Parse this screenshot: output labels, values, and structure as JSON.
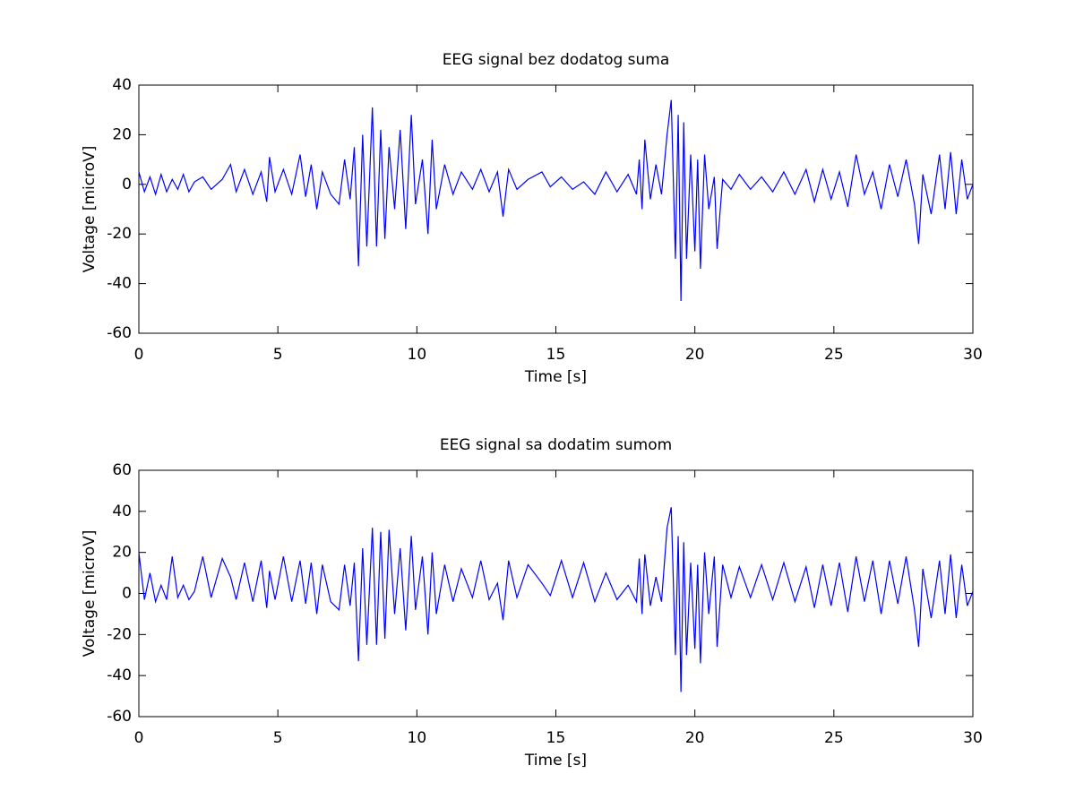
{
  "chart_data": [
    {
      "type": "line",
      "title": "EEG signal bez dodatog suma",
      "xlabel": "Time [s]",
      "ylabel": "Voltage [microV]",
      "xlim": [
        0,
        30
      ],
      "xticks": [
        0,
        5,
        10,
        15,
        20,
        25,
        30
      ],
      "ylim": [
        -60,
        40
      ],
      "yticks": [
        -60,
        -40,
        -20,
        0,
        20,
        40
      ],
      "color": "#0000ff",
      "x": [
        0,
        0.2,
        0.4,
        0.6,
        0.8,
        1.0,
        1.2,
        1.4,
        1.6,
        1.8,
        2.0,
        2.3,
        2.6,
        3.0,
        3.3,
        3.5,
        3.8,
        4.1,
        4.4,
        4.6,
        4.7,
        4.9,
        5.2,
        5.5,
        5.8,
        6.0,
        6.2,
        6.4,
        6.6,
        6.9,
        7.2,
        7.4,
        7.6,
        7.75,
        7.9,
        8.05,
        8.2,
        8.4,
        8.55,
        8.7,
        8.85,
        9.0,
        9.2,
        9.4,
        9.6,
        9.8,
        9.95,
        10.2,
        10.4,
        10.55,
        10.7,
        11.0,
        11.3,
        11.6,
        12.0,
        12.3,
        12.6,
        12.9,
        13.1,
        13.3,
        13.6,
        14.0,
        14.5,
        14.8,
        15.2,
        15.6,
        16.0,
        16.4,
        16.8,
        17.2,
        17.6,
        17.9,
        18.0,
        18.1,
        18.2,
        18.4,
        18.6,
        18.8,
        19.0,
        19.15,
        19.3,
        19.4,
        19.5,
        19.6,
        19.7,
        19.85,
        20.0,
        20.1,
        20.2,
        20.35,
        20.5,
        20.7,
        20.8,
        21.0,
        21.3,
        21.6,
        22.0,
        22.4,
        22.8,
        23.2,
        23.6,
        24.0,
        24.3,
        24.6,
        24.9,
        25.2,
        25.5,
        25.8,
        26.1,
        26.4,
        26.7,
        27.0,
        27.3,
        27.6,
        27.9,
        28.05,
        28.2,
        28.5,
        28.8,
        29.0,
        29.2,
        29.4,
        29.6,
        29.8,
        30.0
      ],
      "values": [
        5,
        -3,
        3,
        -4,
        4,
        -3,
        2,
        -2,
        4,
        -3,
        1,
        3,
        -2,
        2,
        8,
        -3,
        6,
        -4,
        5,
        -7,
        11,
        -3,
        6,
        -4,
        12,
        -5,
        8,
        -10,
        5,
        -4,
        -8,
        10,
        -6,
        15,
        -33,
        20,
        -25,
        31,
        -25,
        22,
        -22,
        15,
        -10,
        22,
        -18,
        28,
        -8,
        10,
        -20,
        18,
        -10,
        8,
        -4,
        5,
        -2,
        6,
        -3,
        5,
        -13,
        6,
        -2,
        2,
        5,
        -1,
        3,
        -2,
        1,
        -4,
        5,
        -3,
        4,
        -4,
        10,
        -10,
        18,
        -6,
        8,
        -4,
        20,
        34,
        -30,
        28,
        -47,
        25,
        -30,
        12,
        -27,
        10,
        -34,
        12,
        -10,
        3,
        -26,
        2,
        -2,
        4,
        -2,
        3,
        -3,
        5,
        -4,
        6,
        -7,
        6,
        -6,
        5,
        -9,
        12,
        -4,
        5,
        -10,
        8,
        -5,
        10,
        -8,
        -24,
        4,
        -12,
        12,
        -10,
        13,
        -12,
        10,
        -6,
        0
      ]
    },
    {
      "type": "line",
      "title": "EEG signal sa dodatim sumom",
      "xlabel": "Time [s]",
      "ylabel": "Voltage [microV]",
      "xlim": [
        0,
        30
      ],
      "xticks": [
        0,
        5,
        10,
        15,
        20,
        25,
        30
      ],
      "ylim": [
        -60,
        60
      ],
      "yticks": [
        -60,
        -40,
        -20,
        0,
        20,
        40,
        60
      ],
      "color": "#0000ff",
      "x": [
        0,
        0.2,
        0.4,
        0.6,
        0.8,
        1.0,
        1.2,
        1.4,
        1.6,
        1.8,
        2.0,
        2.3,
        2.6,
        3.0,
        3.3,
        3.5,
        3.8,
        4.1,
        4.4,
        4.6,
        4.7,
        4.9,
        5.2,
        5.5,
        5.8,
        6.0,
        6.2,
        6.4,
        6.6,
        6.9,
        7.2,
        7.4,
        7.6,
        7.75,
        7.9,
        8.05,
        8.2,
        8.4,
        8.55,
        8.7,
        8.85,
        9.0,
        9.2,
        9.4,
        9.6,
        9.8,
        9.95,
        10.2,
        10.4,
        10.55,
        10.7,
        11.0,
        11.3,
        11.6,
        12.0,
        12.3,
        12.6,
        12.9,
        13.1,
        13.3,
        13.6,
        14.0,
        14.5,
        14.8,
        15.2,
        15.6,
        16.0,
        16.4,
        16.8,
        17.2,
        17.6,
        17.9,
        18.0,
        18.1,
        18.2,
        18.4,
        18.6,
        18.8,
        19.0,
        19.15,
        19.3,
        19.4,
        19.5,
        19.6,
        19.7,
        19.85,
        20.0,
        20.1,
        20.2,
        20.35,
        20.5,
        20.7,
        20.8,
        21.0,
        21.3,
        21.6,
        22.0,
        22.4,
        22.8,
        23.2,
        23.6,
        24.0,
        24.3,
        24.6,
        24.9,
        25.2,
        25.5,
        25.8,
        26.1,
        26.4,
        26.7,
        27.0,
        27.3,
        27.6,
        27.9,
        28.05,
        28.2,
        28.5,
        28.8,
        29.0,
        29.2,
        29.4,
        29.6,
        29.8,
        30.0
      ],
      "values": [
        20,
        -3,
        10,
        -4,
        4,
        -3,
        18,
        -2,
        4,
        -3,
        1,
        18,
        -2,
        17,
        8,
        -3,
        15,
        -4,
        16,
        -7,
        11,
        -3,
        18,
        -4,
        16,
        -5,
        15,
        -10,
        14,
        -4,
        -8,
        14,
        -6,
        15,
        -33,
        22,
        -25,
        32,
        -25,
        30,
        -22,
        31,
        -10,
        22,
        -18,
        28,
        -8,
        18,
        -20,
        20,
        -10,
        14,
        -4,
        12,
        -2,
        16,
        -3,
        5,
        -13,
        16,
        -2,
        14,
        5,
        -1,
        16,
        -2,
        15,
        -4,
        10,
        -3,
        4,
        -4,
        17,
        -10,
        19,
        -6,
        8,
        -4,
        32,
        42,
        -30,
        28,
        -48,
        25,
        -30,
        15,
        -27,
        14,
        -34,
        20,
        -10,
        18,
        -26,
        14,
        -2,
        13,
        -2,
        14,
        -3,
        15,
        -4,
        13,
        -7,
        14,
        -6,
        15,
        -9,
        18,
        -4,
        16,
        -10,
        16,
        -5,
        18,
        -8,
        -26,
        12,
        -12,
        16,
        -10,
        19,
        -12,
        14,
        -6,
        1
      ]
    }
  ]
}
